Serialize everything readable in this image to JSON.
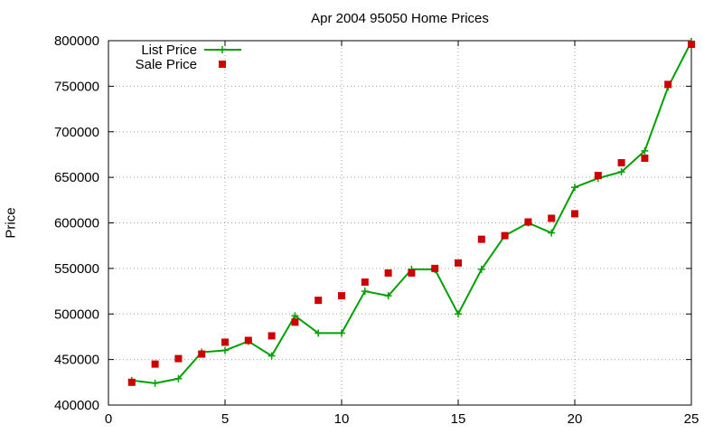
{
  "chart_data": {
    "type": "line",
    "title": "Apr 2004 95050 Home Prices",
    "xlabel": "",
    "ylabel": "Price",
    "xlim": [
      0,
      25
    ],
    "ylim": [
      400000,
      800000
    ],
    "x_ticks": [
      "0",
      "5",
      "10",
      "15",
      "20",
      "25"
    ],
    "y_ticks": [
      "400000",
      "450000",
      "500000",
      "550000",
      "600000",
      "650000",
      "700000",
      "750000",
      "800000"
    ],
    "grid": true,
    "legend_position": "top-left",
    "x": [
      1,
      2,
      3,
      4,
      5,
      6,
      7,
      8,
      9,
      10,
      11,
      12,
      13,
      14,
      15,
      16,
      17,
      18,
      19,
      20,
      21,
      22,
      23,
      24,
      25
    ],
    "series": [
      {
        "name": "List Price",
        "style": "line-with-plus-markers",
        "color": "#00a000",
        "values": [
          427000,
          424000,
          429000,
          458000,
          460000,
          470000,
          454000,
          498000,
          479000,
          479000,
          525000,
          520000,
          549000,
          549000,
          500000,
          549000,
          586000,
          600000,
          589000,
          639000,
          649000,
          656000,
          679000,
          749000,
          799000
        ]
      },
      {
        "name": "Sale Price",
        "style": "square-markers",
        "color": "#cc0000",
        "values": [
          425000,
          445000,
          451000,
          456000,
          469000,
          471000,
          476000,
          491000,
          515000,
          520000,
          535000,
          545000,
          545000,
          550000,
          556000,
          582000,
          586000,
          601000,
          605000,
          610000,
          652000,
          666000,
          671000,
          752000,
          796000
        ]
      }
    ]
  }
}
